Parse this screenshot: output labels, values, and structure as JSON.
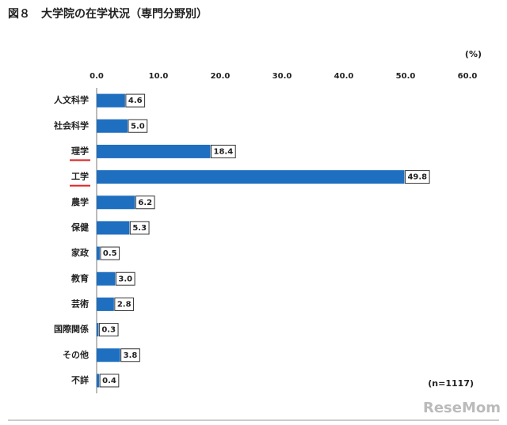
{
  "chart_data": {
    "type": "bar",
    "orientation": "horizontal",
    "title": "図８　大学院の在学状況（専門分野別）",
    "unit_label": "(%)",
    "annotation": "(n=1117)",
    "watermark": "ReseMom",
    "categories": [
      "人文科学",
      "社会科学",
      "理学",
      "工学",
      "農学",
      "保健",
      "家政",
      "教育",
      "芸術",
      "国際関係",
      "その他",
      "不詳"
    ],
    "values": [
      4.6,
      5.0,
      18.4,
      49.8,
      6.2,
      5.3,
      0.5,
      3.0,
      2.8,
      0.3,
      3.8,
      0.4
    ],
    "value_labels": [
      "4.6",
      "5.0",
      "18.4",
      "49.8",
      "6.2",
      "5.3",
      "0.5",
      "3.0",
      "2.8",
      "0.3",
      "3.8",
      "0.4"
    ],
    "underline": [
      false,
      false,
      true,
      true,
      false,
      false,
      false,
      false,
      false,
      false,
      false,
      false
    ],
    "color": "#1f6fc0",
    "xlim": [
      0,
      60
    ],
    "xticks": [
      {
        "value": 0,
        "label": "0.0"
      },
      {
        "value": 10,
        "label": "10.0"
      },
      {
        "value": 20,
        "label": "20.0"
      },
      {
        "value": 30,
        "label": "30.0"
      },
      {
        "value": 40,
        "label": "40.0"
      },
      {
        "value": 50,
        "label": "50.0"
      },
      {
        "value": 60,
        "label": "60.0"
      }
    ],
    "grid": false
  }
}
